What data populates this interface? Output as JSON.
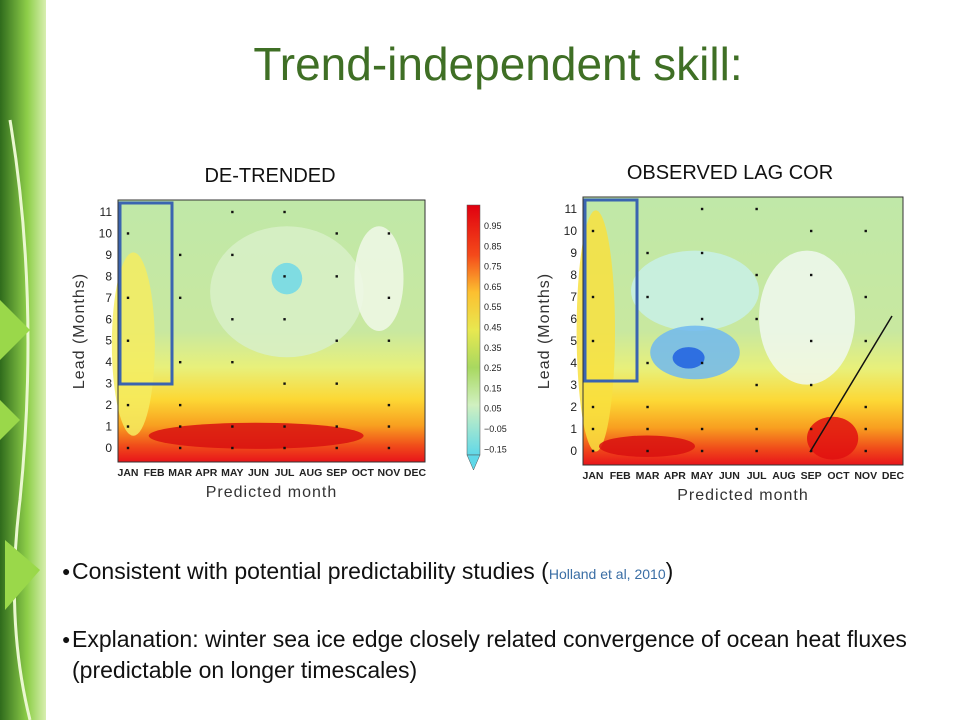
{
  "header": {
    "title": "Trend-independent skill:"
  },
  "panels": [
    {
      "title": "DE-TRENDED",
      "y_label": "Lead (Months)",
      "x_label": "Predicted month",
      "months": [
        "JAN",
        "FEB",
        "MAR",
        "APR",
        "MAY",
        "JUN",
        "JUL",
        "AUG",
        "SEP",
        "OCT",
        "NOV",
        "DEC"
      ],
      "leads": [
        "0",
        "1",
        "2",
        "3",
        "4",
        "5",
        "6",
        "7",
        "8",
        "9",
        "10",
        "11"
      ]
    },
    {
      "title": "OBSERVED LAG COR",
      "y_label": "Lead (Months)",
      "x_label": "Predicted month",
      "months": [
        "JAN",
        "FEB",
        "MAR",
        "APR",
        "MAY",
        "JUN",
        "JUL",
        "AUG",
        "SEP",
        "OCT",
        "NOV",
        "DEC"
      ],
      "leads": [
        "0",
        "1",
        "2",
        "3",
        "4",
        "5",
        "6",
        "7",
        "8",
        "9",
        "10",
        "11"
      ]
    }
  ],
  "colorbar": {
    "labels": [
      "0.95",
      "0.85",
      "0.75",
      "0.65",
      "0.55",
      "0.45",
      "0.35",
      "0.25",
      "0.15",
      "0.05",
      "−0.05",
      "−0.15"
    ]
  },
  "bullets": [
    {
      "text": "Consistent with potential predictability studies (",
      "cite": "Holland et al, 2010",
      "end": ")"
    },
    {
      "text": "Explanation: winter sea ice edge closely related convergence of ocean heat fluxes (predictable on longer timescales)"
    }
  ]
}
